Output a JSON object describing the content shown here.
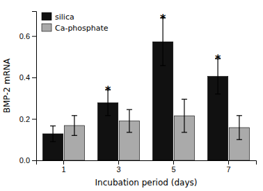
{
  "chart_data": {
    "type": "bar",
    "categories": [
      "1",
      "3",
      "5",
      "7"
    ],
    "xlabel": "Incubation period (days)",
    "ylabel": "BMP-2 mRNA",
    "series": [
      {
        "name": "silica",
        "color": "#111111",
        "values": [
          0.128,
          0.278,
          0.572,
          0.405
        ],
        "errors": [
          0.038,
          0.062,
          0.115,
          0.085
        ]
      },
      {
        "name": "Ca-phosphate",
        "color": "#aaaaaa",
        "values": [
          0.168,
          0.19,
          0.215,
          0.158
        ],
        "errors": [
          0.048,
          0.055,
          0.08,
          0.058
        ]
      }
    ],
    "annotations": [
      {
        "text": "*",
        "series": "silica",
        "category": "3"
      },
      {
        "text": "*",
        "series": "silica",
        "category": "5"
      },
      {
        "text": "*",
        "series": "silica",
        "category": "7"
      }
    ],
    "ylim": [
      0.0,
      0.72
    ],
    "yticks": [
      {
        "value": 0.0,
        "label": "0.0"
      },
      0.2,
      0.4,
      0.6
    ],
    "legend": "upper left",
    "grid": false
  }
}
